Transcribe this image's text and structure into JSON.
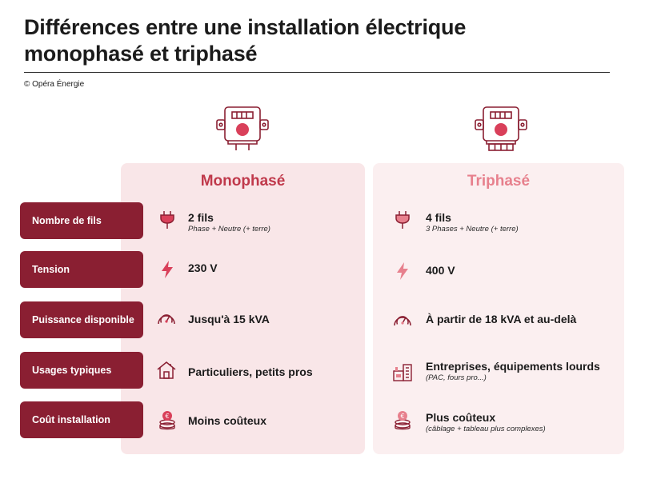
{
  "header": {
    "title_line1": "Différences entre une installation électrique",
    "title_line2": "monophasé et triphasé",
    "copyright": "© Opéra Énergie"
  },
  "columns": {
    "mono": {
      "title": "Monophasé",
      "color": "#c0394b"
    },
    "tri": {
      "title": "Triphasé",
      "color": "#e7808d"
    }
  },
  "rows": [
    {
      "label": "Nombre de fils",
      "icon": "plug-icon",
      "mono": {
        "main": "2 fils",
        "sub": "Phase + Neutre (+ terre)"
      },
      "tri": {
        "main": "4 fils",
        "sub": "3 Phases + Neutre (+ terre)"
      }
    },
    {
      "label": "Tension",
      "icon": "lightning-icon",
      "mono": {
        "main": "230 V",
        "sub": ""
      },
      "tri": {
        "main": "400 V",
        "sub": ""
      }
    },
    {
      "label": "Puissance disponible",
      "icon": "gauge-icon",
      "mono": {
        "main": "Jusqu'à 15 kVA",
        "sub": ""
      },
      "tri": {
        "main": "À partir de 18 kVA et au-delà",
        "sub": ""
      }
    },
    {
      "label": "Usages typiques",
      "icon_mono": "house-icon",
      "icon_tri": "factory-icon",
      "mono": {
        "main": "Particuliers, petits pros",
        "sub": ""
      },
      "tri": {
        "main": "Entreprises, équipements lourds",
        "sub": "(PAC, fours pro...)"
      }
    },
    {
      "label": "Coût installation",
      "icon": "coins-icon",
      "mono": {
        "main": "Moins coûteux",
        "sub": ""
      },
      "tri": {
        "main": "Plus coûteux",
        "sub": "(câblage + tableau plus complexes)"
      }
    }
  ],
  "colors": {
    "label_bg": "#8a1f32",
    "icon_stroke": "#8a1f32",
    "icon_accent": "#d9405a"
  }
}
